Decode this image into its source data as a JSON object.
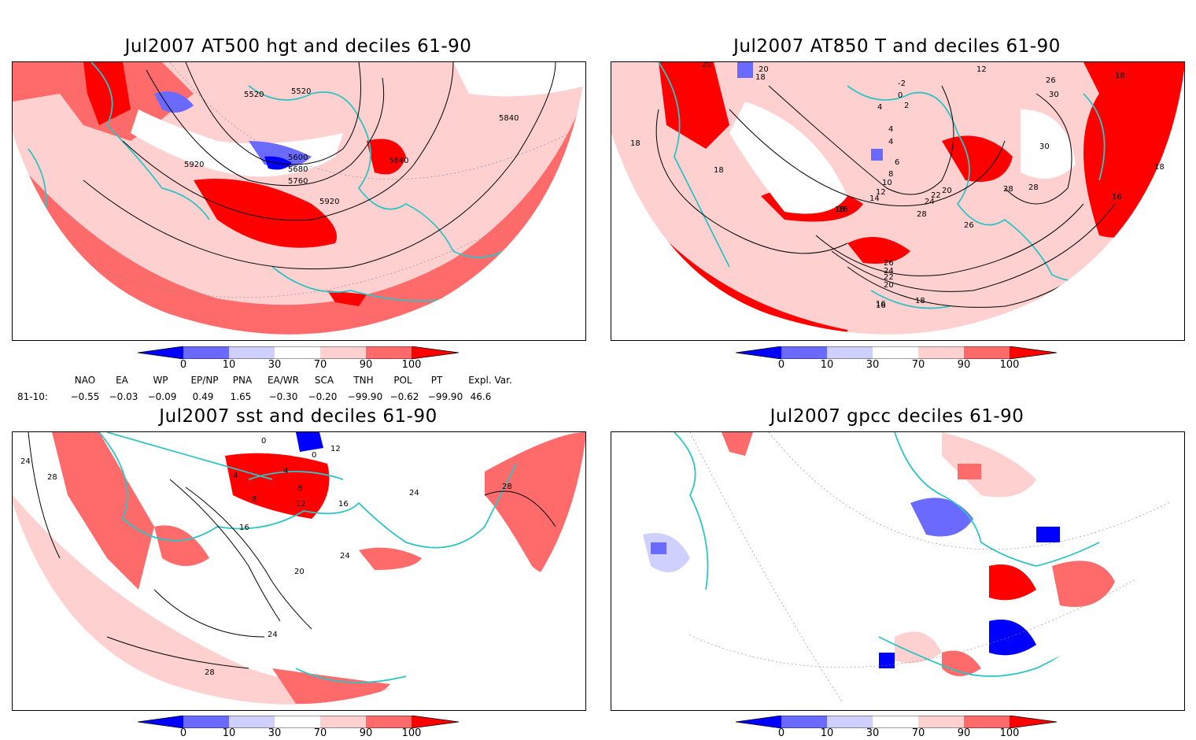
{
  "colors": {
    "deep_blue": "#0000ff",
    "mid_blue": "#6a6aff",
    "light_blue": "#d0d0ff",
    "light_red": "#ffd0d0",
    "mid_red": "#ff6a6a",
    "deep_red": "#ff0000",
    "coastline": "#2ec4c4",
    "contour": "#000000"
  },
  "colorbar": {
    "ticks": [
      "0",
      "10",
      "30",
      "70",
      "90",
      "100"
    ]
  },
  "panels": [
    {
      "title": "Jul2007 AT500 hgt and deciles 61-90",
      "contour_labels": [
        "5520",
        "5520",
        "5600",
        "5680",
        "5760",
        "5840",
        "5840",
        "5920",
        "5920"
      ]
    },
    {
      "title": "Jul2007 AT850 T and deciles 61-90",
      "contour_labels": [
        "20",
        "20",
        "18",
        "-2",
        "0",
        "2",
        "4",
        "4",
        "4",
        "6",
        "8",
        "10",
        "12",
        "14",
        "16",
        "16",
        "18",
        "18",
        "18",
        "18",
        "20",
        "22",
        "24",
        "26",
        "28",
        "28",
        "26",
        "24",
        "22",
        "20",
        "18",
        "16",
        "16",
        "12",
        "26",
        "30",
        "30",
        "28",
        "18"
      ]
    },
    {
      "title": "Jul2007 sst and deciles 61-90",
      "contour_labels": [
        "0",
        "24",
        "28",
        "4",
        "4",
        "8",
        "8",
        "12",
        "16",
        "16",
        "20",
        "24",
        "24",
        "28",
        "24",
        "28",
        "0",
        "12"
      ]
    },
    {
      "title": "Jul2007 gpcc deciles 61-90",
      "contour_labels": []
    }
  ],
  "indices": {
    "row_label": "81-10:",
    "items": [
      {
        "name": "NAO",
        "value": "−0.55"
      },
      {
        "name": "EA",
        "value": "−0.03"
      },
      {
        "name": "WP",
        "value": "−0.09"
      },
      {
        "name": "EP/NP",
        "value": "0.49"
      },
      {
        "name": "PNA",
        "value": "1.65"
      },
      {
        "name": "EA/WR",
        "value": "−0.30"
      },
      {
        "name": "SCA",
        "value": "−0.20"
      },
      {
        "name": "TNH",
        "value": "−99.90"
      },
      {
        "name": "POL",
        "value": "−0.62"
      },
      {
        "name": "PT",
        "value": "−99.90"
      },
      {
        "name": "Expl. Var.",
        "value": "46.6"
      }
    ]
  }
}
